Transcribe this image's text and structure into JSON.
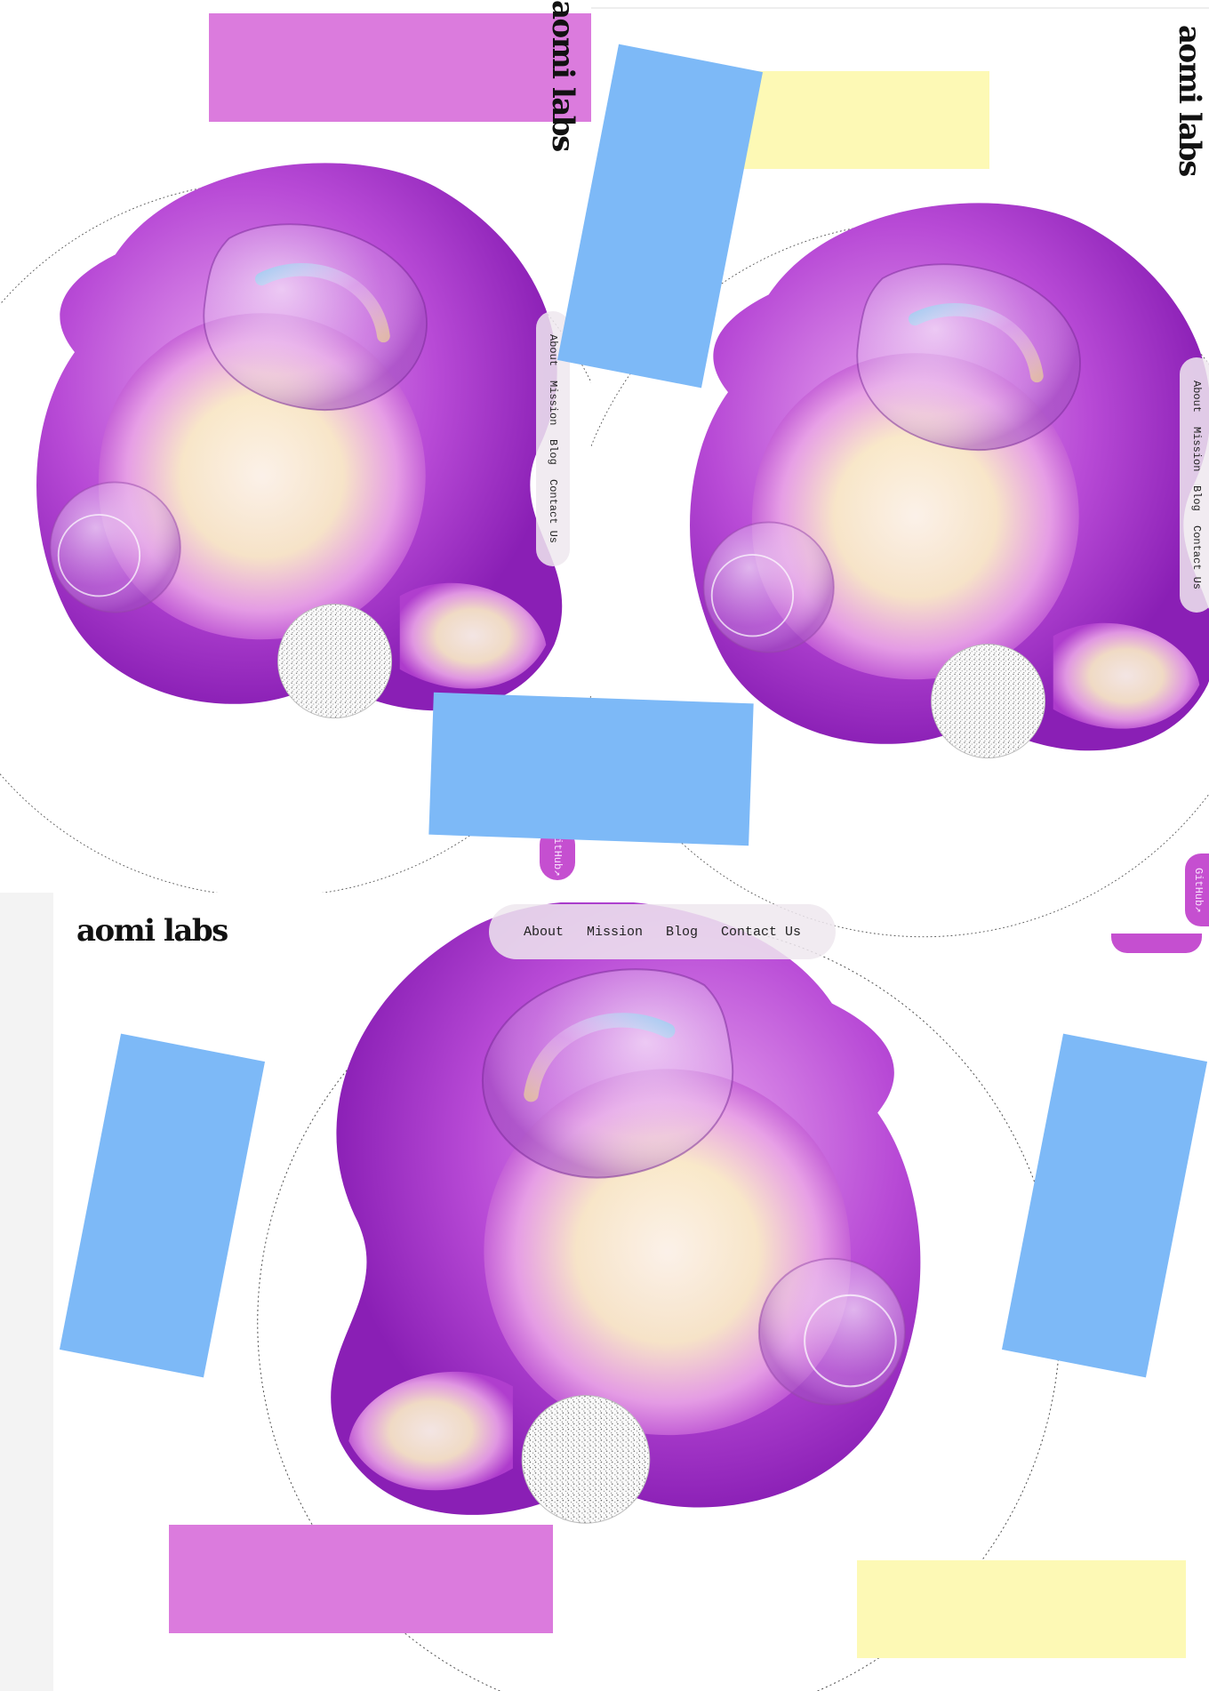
{
  "brand": {
    "logo": "aomi labs"
  },
  "nav": {
    "items": [
      {
        "label": "About"
      },
      {
        "label": "Mission"
      },
      {
        "label": "Blog"
      },
      {
        "label": "Contact Us"
      }
    ],
    "github_label": "GitHub↗"
  },
  "colors": {
    "magenta_block": "#db7bdd",
    "blue_block": "#7db9f7",
    "yellow_block": "#fdf9b5",
    "blob_purple": "#b347d3",
    "blob_cream": "#fbf2e0",
    "github_button": "#c54fd0"
  },
  "icons": {
    "external_link": "arrow-up-right-icon",
    "noise_sphere": "dotted-sphere-icon"
  }
}
